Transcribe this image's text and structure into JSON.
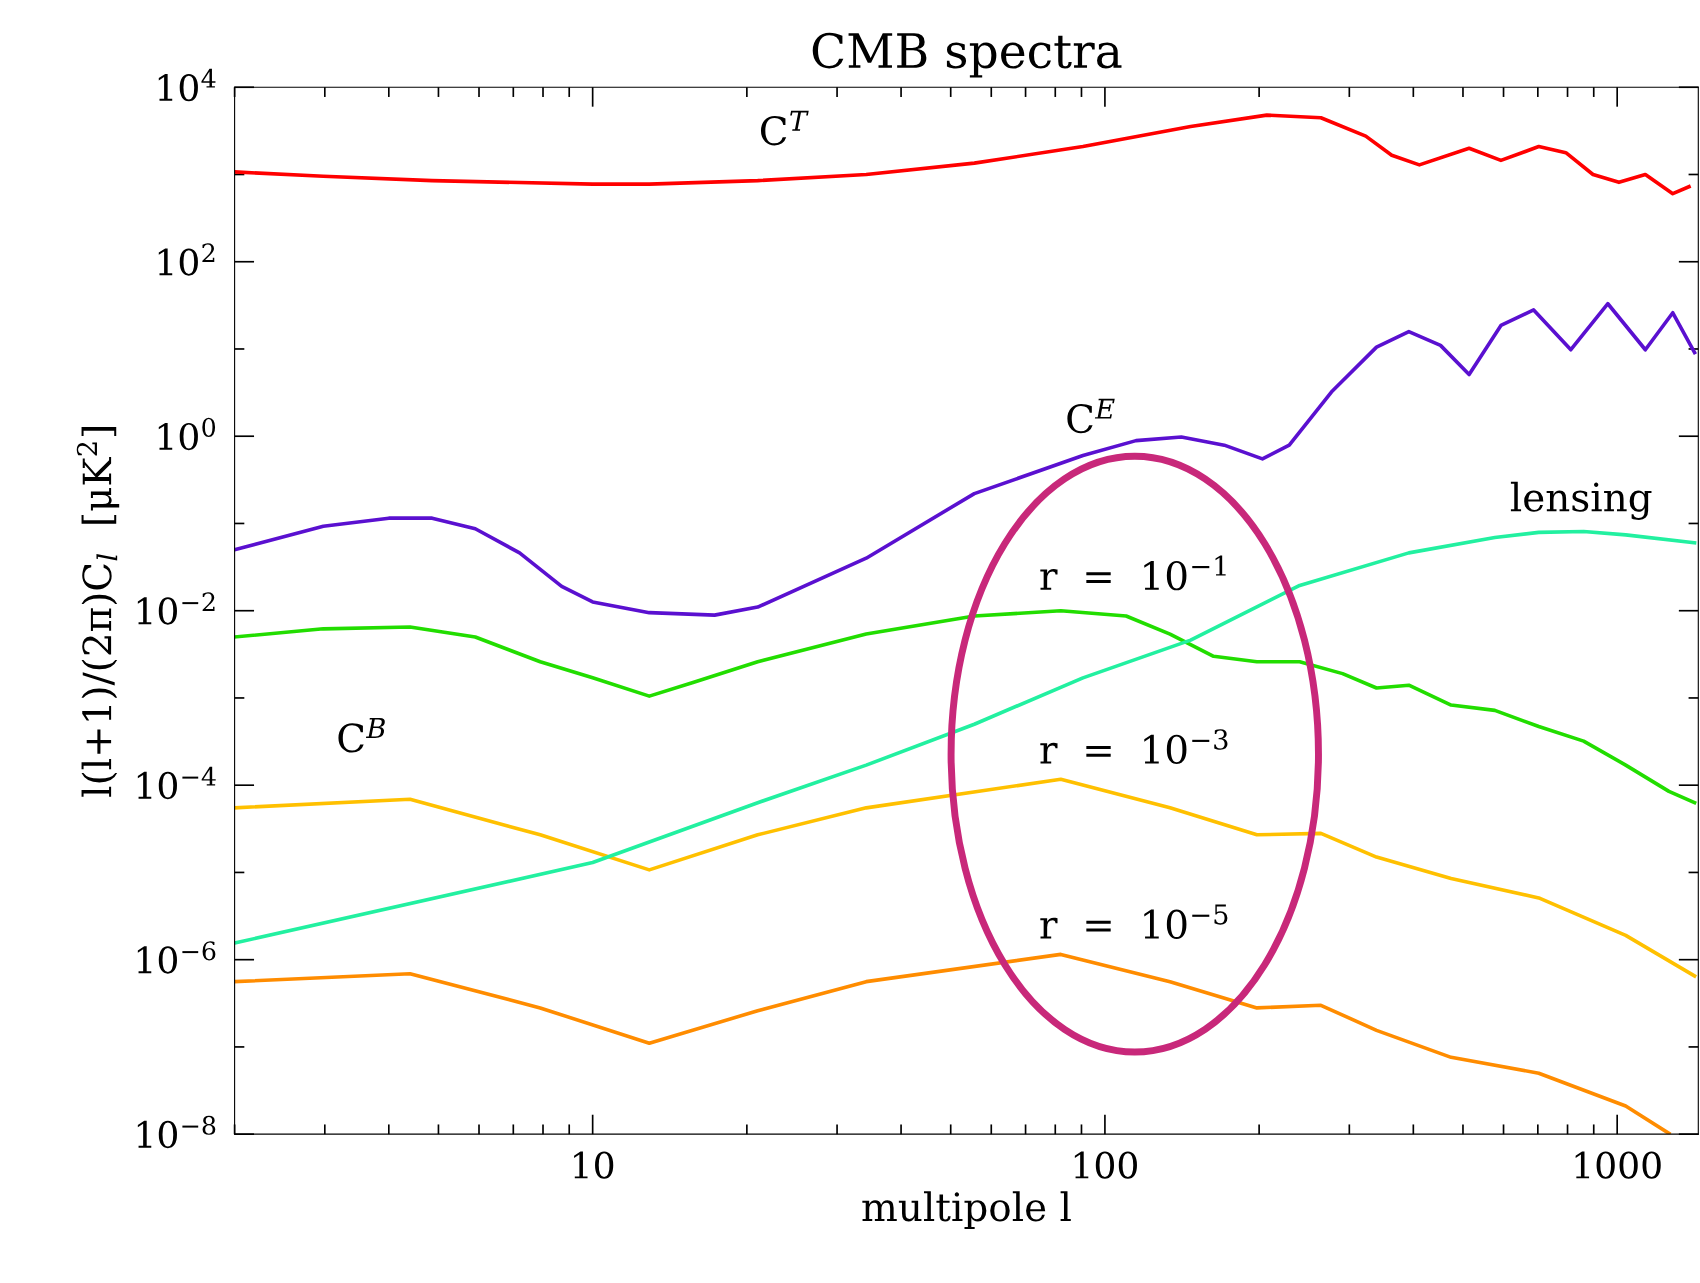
{
  "chart_data": {
    "type": "line",
    "title": "CMB spectra",
    "xlabel": "multipole l",
    "ylabel": "l(l+1)/(2π)C$_{l}$  [μK$^{2}$]",
    "log": "xy",
    "grid": false,
    "legend": false,
    "marker": "none",
    "line_style": "solid",
    "xlim": [
      2,
      1440
    ],
    "ylim": [
      1e-08,
      10000
    ],
    "xticks": [
      {
        "value": 2,
        "label": null
      },
      {
        "value": 3,
        "label": null
      },
      {
        "value": 4,
        "label": null
      },
      {
        "value": 5,
        "label": null
      },
      {
        "value": 6,
        "label": null
      },
      {
        "value": 7,
        "label": null
      },
      {
        "value": 8,
        "label": null
      },
      {
        "value": 9,
        "label": null
      },
      10,
      {
        "value": 20,
        "label": null
      },
      {
        "value": 30,
        "label": null
      },
      {
        "value": 40,
        "label": null
      },
      {
        "value": 50,
        "label": null
      },
      {
        "value": 60,
        "label": null
      },
      {
        "value": 70,
        "label": null
      },
      {
        "value": 80,
        "label": null
      },
      {
        "value": 90,
        "label": null
      },
      100,
      {
        "value": 200,
        "label": null
      },
      {
        "value": 300,
        "label": null
      },
      {
        "value": 400,
        "label": null
      },
      {
        "value": 500,
        "label": null
      },
      {
        "value": 600,
        "label": null
      },
      {
        "value": 700,
        "label": null
      },
      {
        "value": 800,
        "label": null
      },
      {
        "value": 900,
        "label": null
      },
      1000
    ],
    "yticks": [
      {
        "value": 1e-08,
        "label": "10$^{−8}$"
      },
      {
        "value": 1e-07,
        "label": null
      },
      {
        "value": 1e-06,
        "label": "10$^{−6}$"
      },
      {
        "value": 1e-05,
        "label": null
      },
      {
        "value": 0.0001,
        "label": "10$^{−4}$"
      },
      {
        "value": 0.001,
        "label": null
      },
      {
        "value": 0.01,
        "label": "10$^{−2}$"
      },
      {
        "value": 0.1,
        "label": null
      },
      {
        "value": 1,
        "label": "10$^{0}$"
      },
      {
        "value": 10,
        "label": null
      },
      {
        "value": 100,
        "label": "10$^{2}$"
      },
      {
        "value": 1000,
        "label": null
      },
      {
        "value": 10000,
        "label": "10$^{4}$"
      }
    ],
    "series": [
      {
        "name": "C$^{T}$",
        "color": "#ff0000",
        "x": [
          2,
          2.98,
          4.86,
          10,
          12.9,
          21,
          34.2,
          55.6,
          90.6,
          147,
          207,
          264,
          323,
          363,
          411,
          514,
          593,
          703,
          794,
          897,
          1008,
          1135,
          1284,
          1381
        ],
        "values": [
          1070,
          955,
          850,
          776,
          776,
          850,
          1000,
          1350,
          2090,
          3550,
          4790,
          4470,
          2750,
          1660,
          1290,
          2000,
          1450,
          2090,
          1780,
          1000,
          813,
          1000,
          603,
          724
        ]
      },
      {
        "name": "C$^{E}$",
        "color": "#5a10d0",
        "x": [
          2,
          2.98,
          4.0,
          4.86,
          5.9,
          7.2,
          8.7,
          10,
          12.9,
          17.3,
          21,
          34.2,
          55.6,
          90.6,
          115,
          141,
          171,
          203,
          229,
          278,
          339,
          392,
          452,
          514,
          593,
          687,
          812,
          959,
          1135,
          1284,
          1416
        ],
        "values": [
          0.05,
          0.093,
          0.115,
          0.115,
          0.087,
          0.046,
          0.019,
          0.0126,
          0.0095,
          0.0089,
          0.011,
          0.04,
          0.22,
          0.6,
          0.89,
          0.98,
          0.79,
          0.55,
          0.79,
          3.3,
          10.5,
          15.8,
          11,
          5.1,
          18.6,
          28,
          9.8,
          33,
          9.8,
          26,
          9.1
        ]
      },
      {
        "name": "r  =  10$^{−1}$",
        "color": "#22dd00",
        "x": [
          2,
          2.98,
          4.4,
          5.9,
          7.9,
          10,
          12.9,
          15.7,
          21,
          34.2,
          55.6,
          82,
          110,
          134,
          163,
          198,
          240,
          291,
          339,
          392,
          474,
          577,
          703,
          860,
          1039,
          1262,
          1416
        ],
        "values": [
          0.005,
          0.0062,
          0.0065,
          0.005,
          0.0026,
          0.0017,
          0.00105,
          0.0015,
          0.0026,
          0.0054,
          0.0087,
          0.01,
          0.0087,
          0.0054,
          0.003,
          0.0026,
          0.0026,
          0.0019,
          0.0013,
          0.0014,
          0.00083,
          0.00072,
          0.00047,
          0.00032,
          0.00017,
          8.5e-05,
          6.3e-05
        ]
      },
      {
        "name": "r  =  10$^{−3}$",
        "color": "#ffc000",
        "x": [
          2,
          4.4,
          7.9,
          12.9,
          21,
          34.2,
          82,
          134,
          198,
          264,
          339,
          474,
          703,
          1039,
          1416
        ],
        "values": [
          5.5e-05,
          6.9e-05,
          2.7e-05,
          1.07e-05,
          2.7e-05,
          5.5e-05,
          0.000117,
          5.5e-05,
          2.7e-05,
          2.8e-05,
          1.5e-05,
          8.5e-06,
          5.1e-06,
          1.9e-06,
          6.5e-07
        ]
      },
      {
        "name": "r  =  10$^{−5}$",
        "color": "#ff8c00",
        "x": [
          2,
          4.4,
          7.9,
          12.9,
          21,
          34.2,
          82,
          134,
          198,
          264,
          339,
          474,
          703,
          1039,
          1262
        ],
        "values": [
          5.6e-07,
          6.9e-07,
          2.8e-07,
          1.1e-07,
          2.6e-07,
          5.6e-07,
          1.15e-06,
          5.6e-07,
          2.8e-07,
          3e-07,
          1.55e-07,
          7.6e-08,
          5e-08,
          2.1e-08,
          1.02e-08
        ]
      },
      {
        "name": "lensing",
        "color": "#22f0a0",
        "x": [
          2,
          10,
          21,
          34.2,
          55.6,
          90.6,
          147,
          240,
          392,
          577,
          703,
          860,
          1039,
          1416
        ],
        "values": [
          1.55e-06,
          1.3e-05,
          6.3e-05,
          0.00017,
          0.0005,
          0.0017,
          0.0046,
          0.0195,
          0.046,
          0.069,
          0.079,
          0.081,
          0.074,
          0.06
        ]
      }
    ],
    "annotations": [
      "C$^{B}$"
    ]
  }
}
